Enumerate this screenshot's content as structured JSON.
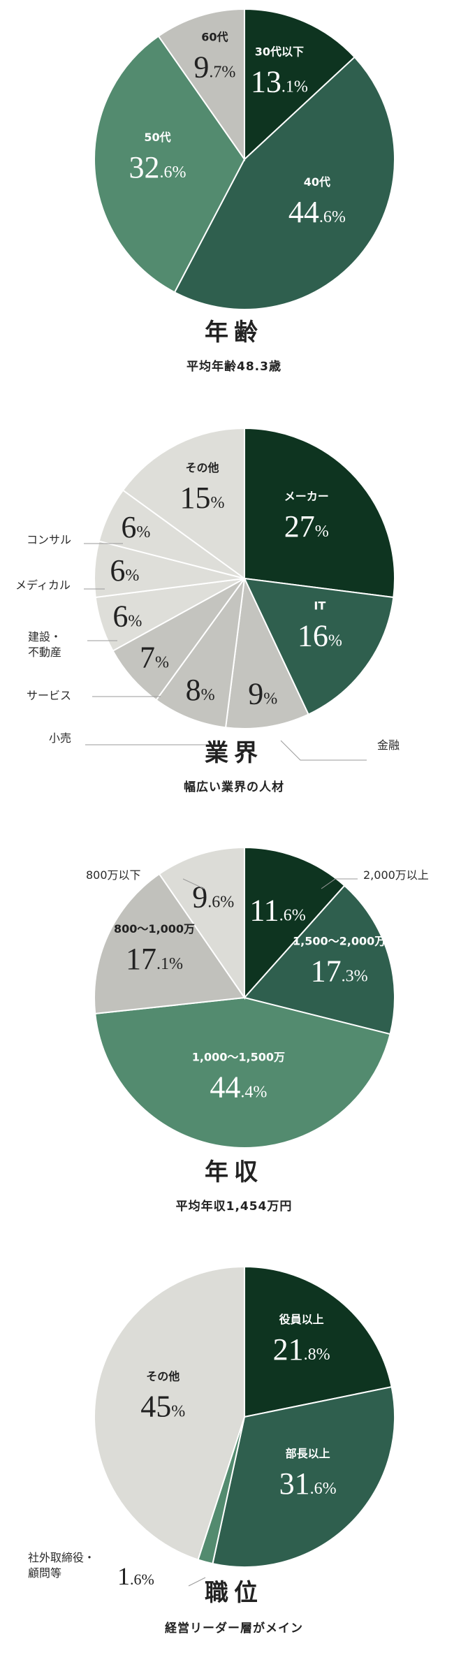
{
  "chart_data": [
    {
      "type": "pie",
      "title": "年齢",
      "subtitle": "平均年齢48.3歳",
      "unit": "%",
      "slices": [
        {
          "label": "30代以下",
          "value": 13.1,
          "color": "#0e3420"
        },
        {
          "label": "40代",
          "value": 44.6,
          "color": "#2f5f4e"
        },
        {
          "label": "50代",
          "value": 32.6,
          "color": "#538b6f"
        },
        {
          "label": "60代",
          "value": 9.7,
          "color": "#c1c1bc"
        }
      ]
    },
    {
      "type": "pie",
      "title": "業界",
      "subtitle": "幅広い業界の人材",
      "unit": "%",
      "slices": [
        {
          "label": "メーカー",
          "value": 27,
          "color": "#0e3420"
        },
        {
          "label": "IT",
          "value": 16,
          "color": "#2f5f4e"
        },
        {
          "label": "金融",
          "value": 9,
          "color": "#c4c4bf"
        },
        {
          "label": "小売",
          "value": 8,
          "color": "#c4c4bf"
        },
        {
          "label": "サービス",
          "value": 7,
          "color": "#c4c4bf"
        },
        {
          "label": "建設・\n不動産",
          "value": 6,
          "color": "#deded9"
        },
        {
          "label": "メディカル",
          "value": 6,
          "color": "#deded9"
        },
        {
          "label": "コンサル",
          "value": 6,
          "color": "#deded9"
        },
        {
          "label": "その他",
          "value": 15,
          "color": "#deded9"
        }
      ]
    },
    {
      "type": "pie",
      "title": "年収",
      "subtitle": "平均年収1,454万円",
      "unit": "%",
      "slices": [
        {
          "label": "2,000万以上",
          "value": 11.6,
          "color": "#0e3420"
        },
        {
          "label": "1,500～2,000万",
          "value": 17.3,
          "color": "#2f5f4e"
        },
        {
          "label": "1,000～1,500万",
          "value": 44.4,
          "color": "#538b6f"
        },
        {
          "label": "800～1,000万",
          "value": 17.1,
          "color": "#c1c1bc"
        },
        {
          "label": "800万以下",
          "value": 9.6,
          "color": "#dcdcd7"
        }
      ]
    },
    {
      "type": "pie",
      "title": "職位",
      "subtitle": "経営リーダー層がメイン",
      "unit": "%",
      "slices": [
        {
          "label": "役員以上",
          "value": 21.8,
          "color": "#0e3420"
        },
        {
          "label": "部長以上",
          "value": 31.6,
          "color": "#2f5f4e"
        },
        {
          "label": "社外取締役・\n顧問等",
          "value": 1.6,
          "color": "#538b6f"
        },
        {
          "label": "その他",
          "value": 45,
          "color": "#dcdcd7"
        }
      ]
    }
  ]
}
